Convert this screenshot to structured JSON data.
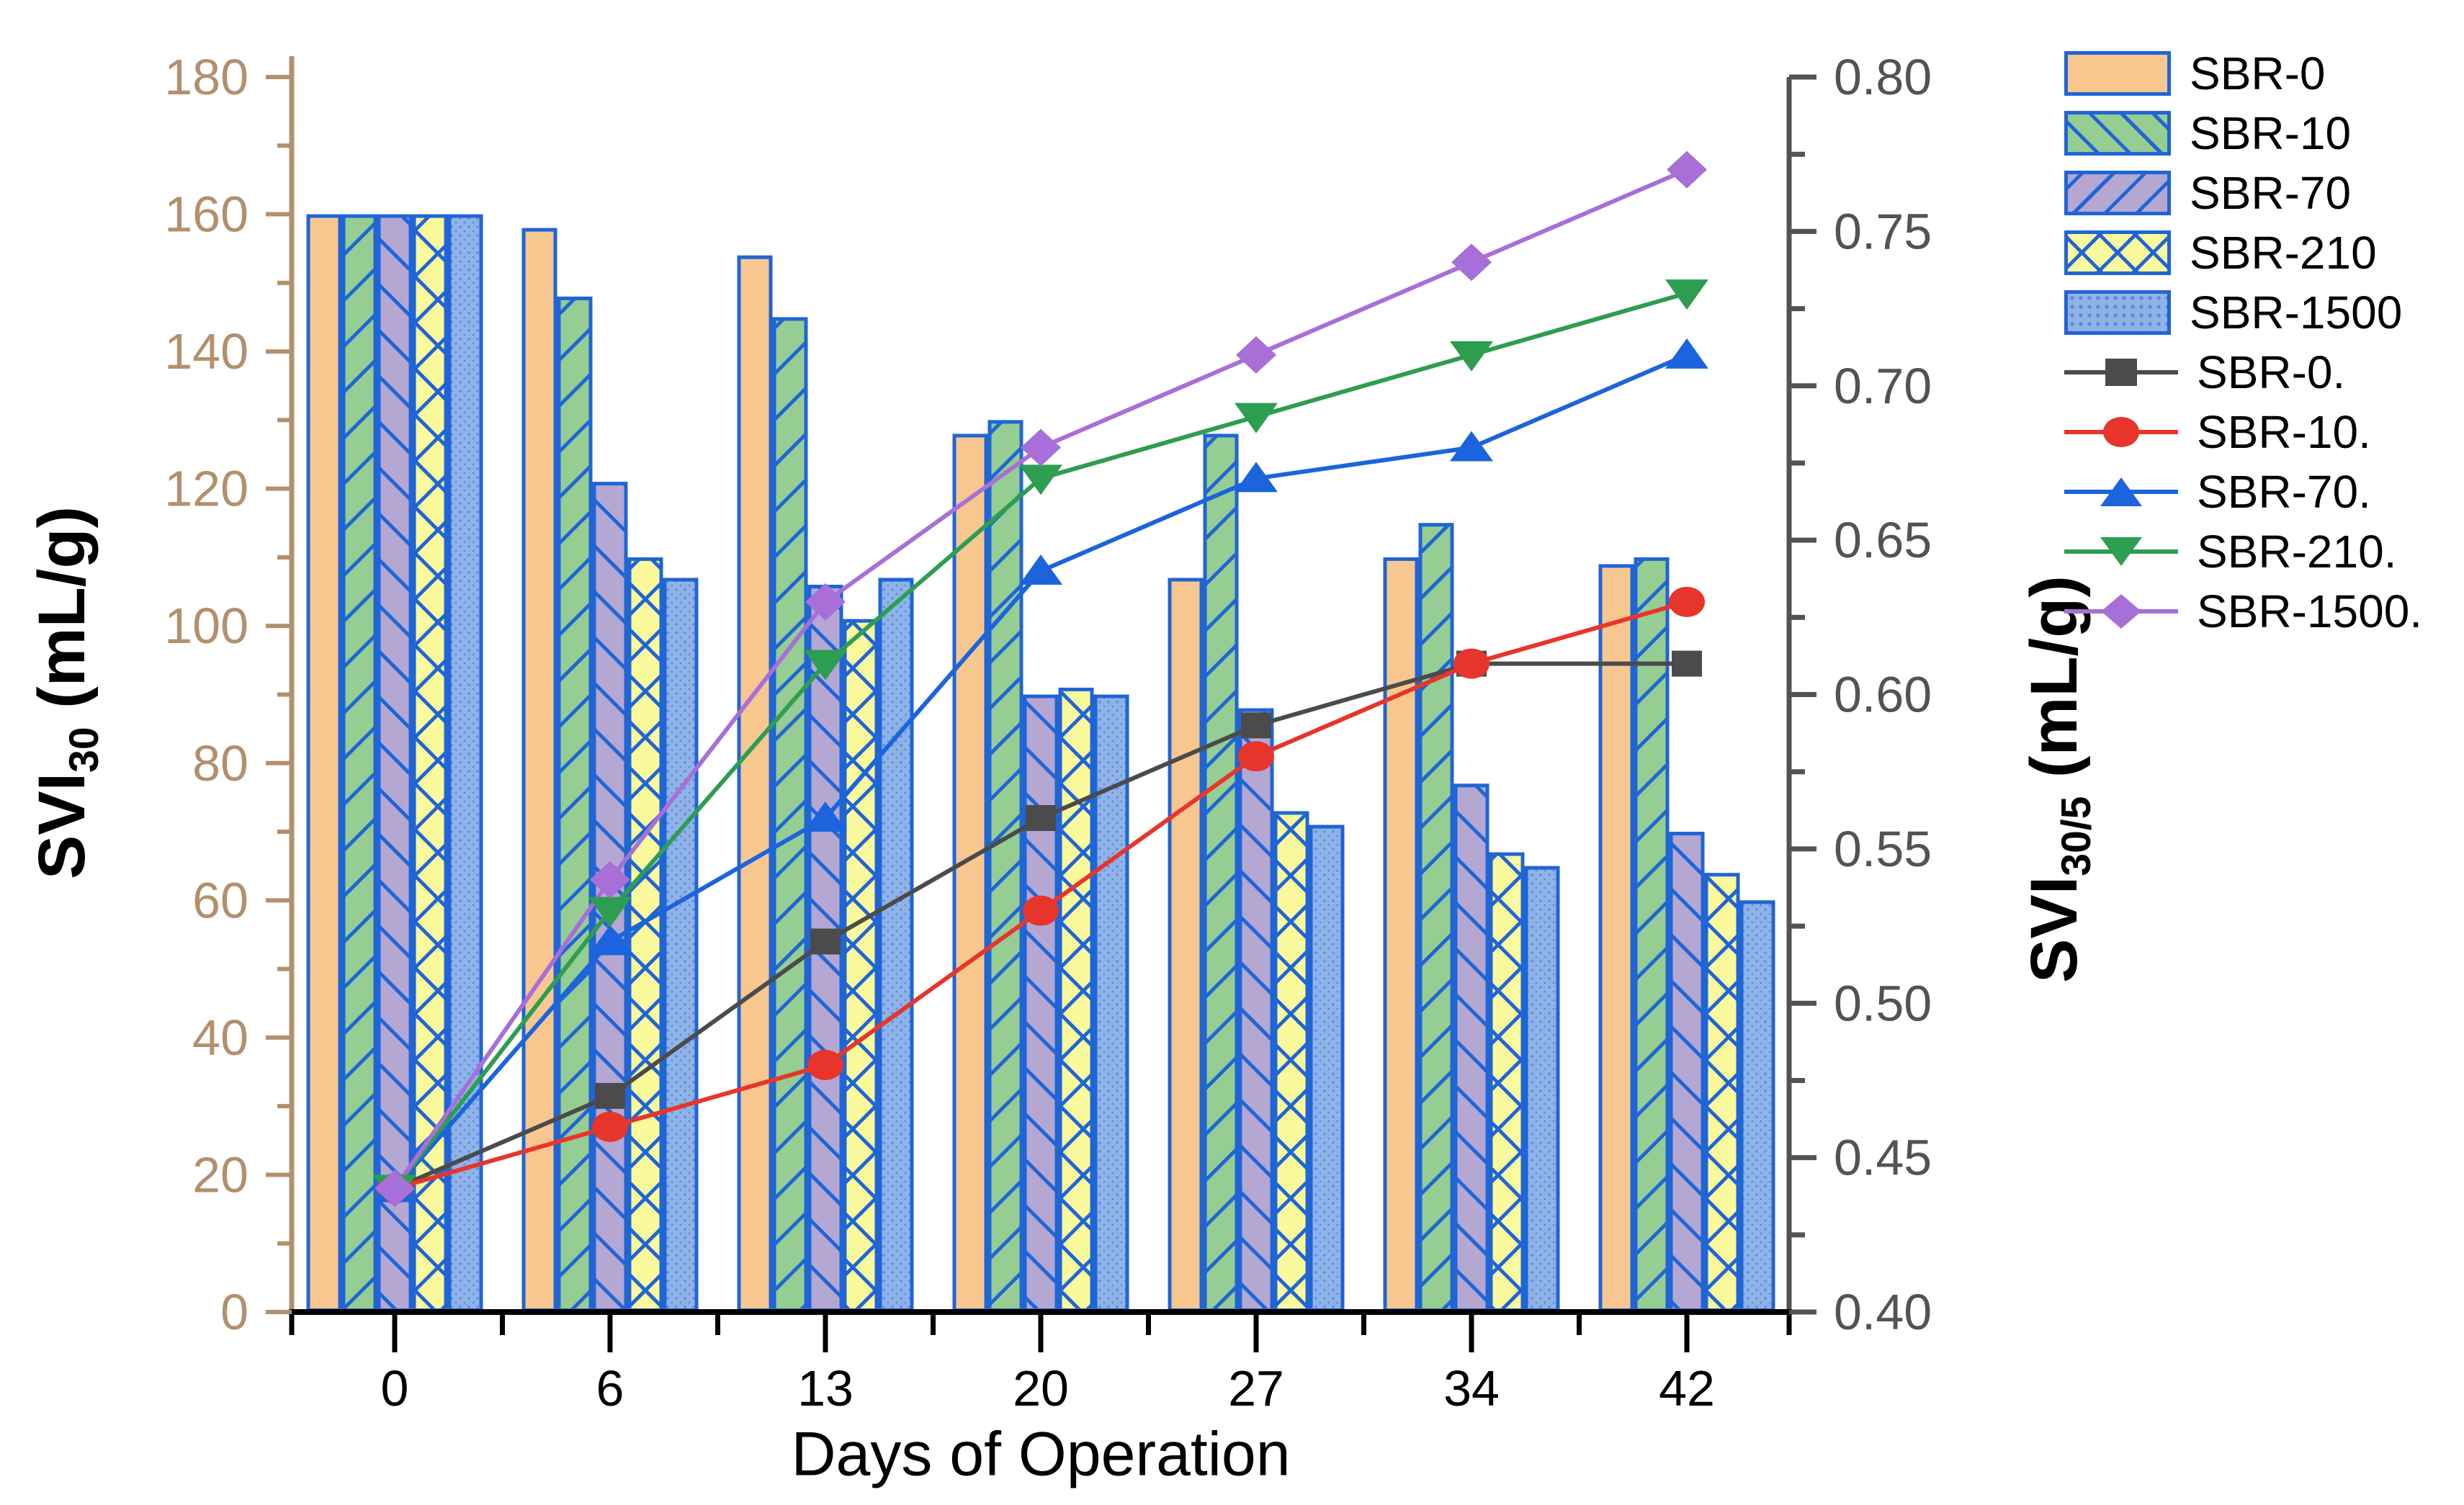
{
  "background": "#ffffff",
  "chart_data": {
    "type": "bar+line",
    "categories": [
      "0",
      "6",
      "13",
      "20",
      "27",
      "34",
      "42"
    ],
    "x_axis": {
      "title": "Days of Operation",
      "tick_labels": [
        "0",
        "6",
        "13",
        "20",
        "27",
        "34",
        "42"
      ],
      "color": "#000000"
    },
    "left_axis": {
      "title_prefix": "SVI",
      "title_sub": "30",
      "title_suffix": " (mL/g)",
      "min": 0,
      "max": 180,
      "major_step": 20,
      "minor_step": 10,
      "tick_labels": [
        "0",
        "20",
        "40",
        "60",
        "80",
        "100",
        "120",
        "140",
        "160",
        "180"
      ],
      "color": "#b3906d"
    },
    "right_axis": {
      "title_prefix": "SVI",
      "title_sub": "30/5",
      "title_suffix": " (mL/g)",
      "min": 0.4,
      "max": 0.8,
      "major_step": 0.05,
      "tick_labels": [
        "0.40",
        "0.45",
        "0.50",
        "0.55",
        "0.60",
        "0.65",
        "0.70",
        "0.75",
        "0.80"
      ],
      "color": "#535353"
    },
    "bar_edge_color": "#2065d6",
    "bar_series": [
      {
        "name": "SBR-0",
        "fill": "#f8c790",
        "pattern": "none",
        "values": [
          160,
          158,
          154,
          128,
          107,
          110,
          109
        ]
      },
      {
        "name": "SBR-10",
        "fill": "#95cd92",
        "pattern": "diag-up",
        "values": [
          160,
          148,
          145,
          130,
          128,
          115,
          110
        ]
      },
      {
        "name": "SBR-70",
        "fill": "#b4a7d2",
        "pattern": "diag-down",
        "values": [
          160,
          121,
          106,
          90,
          88,
          77,
          70
        ]
      },
      {
        "name": "SBR-210",
        "fill": "#fafa9c",
        "pattern": "cross",
        "values": [
          160,
          110,
          101,
          91,
          73,
          67,
          64
        ]
      },
      {
        "name": "SBR-1500",
        "fill": "#8fb3e8",
        "pattern": "dots",
        "values": [
          160,
          107,
          107,
          90,
          71,
          65,
          60
        ]
      }
    ],
    "line_series": [
      {
        "name": "SBR-0.",
        "color": "#4b4b4b",
        "marker": "square",
        "values": [
          0.44,
          0.47,
          0.52,
          0.56,
          0.59,
          0.61,
          0.61
        ]
      },
      {
        "name": "SBR-10.",
        "color": "#e8352b",
        "marker": "circle",
        "values": [
          0.44,
          0.46,
          0.48,
          0.53,
          0.58,
          0.61,
          0.63
        ]
      },
      {
        "name": "SBR-70.",
        "color": "#1b64dd",
        "marker": "triangle-up",
        "values": [
          0.44,
          0.52,
          0.56,
          0.64,
          0.67,
          0.68,
          0.71
        ]
      },
      {
        "name": "SBR-210.",
        "color": "#2d9e50",
        "marker": "triangle-down",
        "values": [
          0.44,
          0.53,
          0.61,
          0.67,
          0.69,
          0.71,
          0.73
        ]
      },
      {
        "name": "SBR-1500.",
        "color": "#a86fd8",
        "marker": "diamond",
        "values": [
          0.44,
          0.54,
          0.63,
          0.68,
          0.71,
          0.74,
          0.77
        ]
      }
    ],
    "legend_position": "top-right",
    "grid": "off"
  }
}
